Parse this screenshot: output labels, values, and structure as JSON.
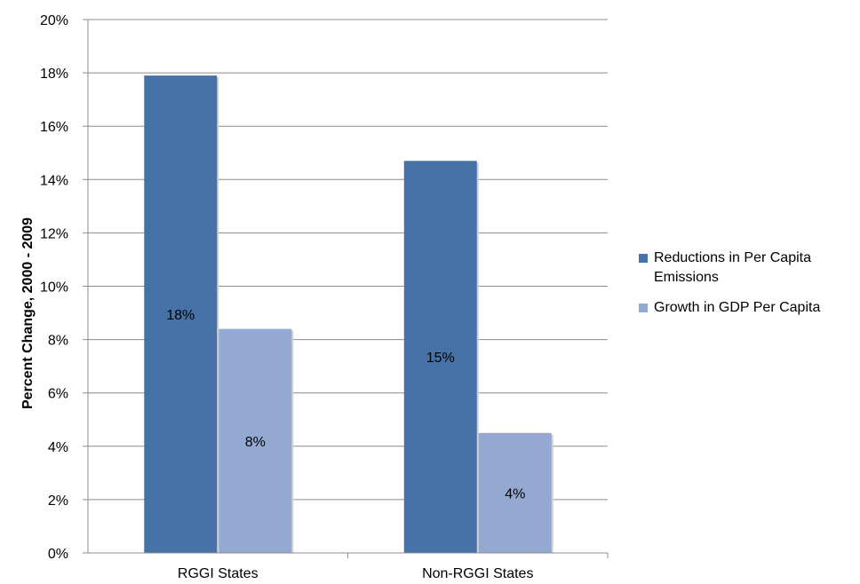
{
  "chart_data": {
    "type": "bar",
    "categories": [
      "RGGI States",
      "Non-RGGI States"
    ],
    "series": [
      {
        "name": "Reductions in Per Capita Emissions",
        "values": [
          17.9,
          14.7
        ],
        "labels": [
          "18%",
          "15%"
        ],
        "color": "#4672a8"
      },
      {
        "name": "Growth in GDP Per Capita",
        "values": [
          8.4,
          4.5
        ],
        "labels": [
          "8%",
          "4%"
        ],
        "color": "#93a9d2"
      }
    ],
    "ylabel": "Percent Change, 2000 - 2009",
    "xlabel": "",
    "ylim": [
      0,
      20
    ],
    "yticks": [
      "0%",
      "2%",
      "4%",
      "6%",
      "8%",
      "10%",
      "12%",
      "14%",
      "16%",
      "18%",
      "20%"
    ],
    "grid": true,
    "legend_position": "right"
  }
}
